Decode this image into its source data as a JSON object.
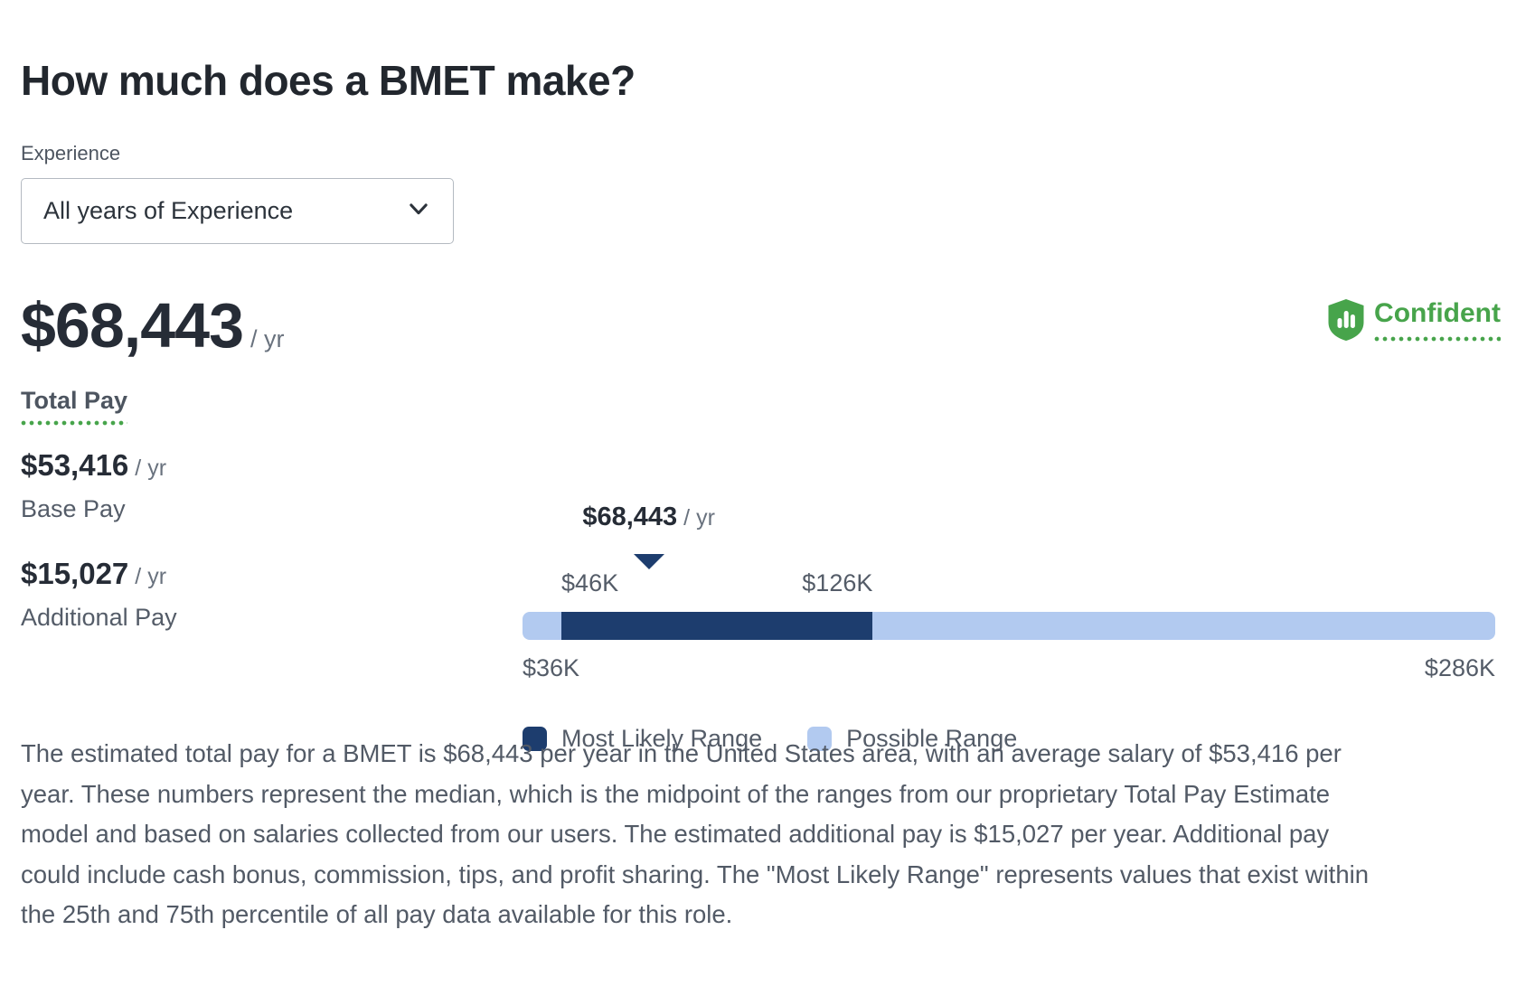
{
  "page": {
    "title": "How much does a BMET make?"
  },
  "experience_filter": {
    "label": "Experience",
    "selected_option": "All years of Experience"
  },
  "total_pay": {
    "amount": "$68,443",
    "per": "/ yr",
    "label": "Total Pay"
  },
  "confidence_badge": {
    "label": "Confident",
    "icon": "shield-bar-chart-icon",
    "color": "#47a44b"
  },
  "pay_breakdown": {
    "base": {
      "amount": "$53,416",
      "per": "/ yr",
      "label": "Base Pay"
    },
    "additional": {
      "amount": "$15,027",
      "per": "/ yr",
      "label": "Additional Pay"
    }
  },
  "chart_data": {
    "type": "range-bar",
    "median_value": 68443,
    "median_label": "$68,443",
    "median_per": "/ yr",
    "axis_min": 36000,
    "axis_max": 286000,
    "axis_min_label": "$36K",
    "axis_max_label": "$286K",
    "most_likely_min": 46000,
    "most_likely_max": 126000,
    "most_likely_min_label": "$46K",
    "most_likely_max_label": "$126K",
    "colors": {
      "most_likely": "#1d3d6e",
      "possible": "#b2caf0"
    },
    "legend": [
      {
        "label": "Most Likely Range",
        "color": "#1d3d6e"
      },
      {
        "label": "Possible Range",
        "color": "#b2caf0"
      }
    ],
    "legend_position": "below",
    "grid": false
  },
  "description": "The estimated total pay for a BMET is $68,443 per year in the United States area, with an average salary of $53,416 per year. These numbers represent the median, which is the midpoint of the ranges from our proprietary Total Pay Estimate model and based on salaries collected from our users. The estimated additional pay is $15,027 per year. Additional pay could include cash bonus, commission, tips, and profit sharing. The \"Most Likely Range\" represents values that exist within the 25th and 75th percentile of all pay data available for this role."
}
